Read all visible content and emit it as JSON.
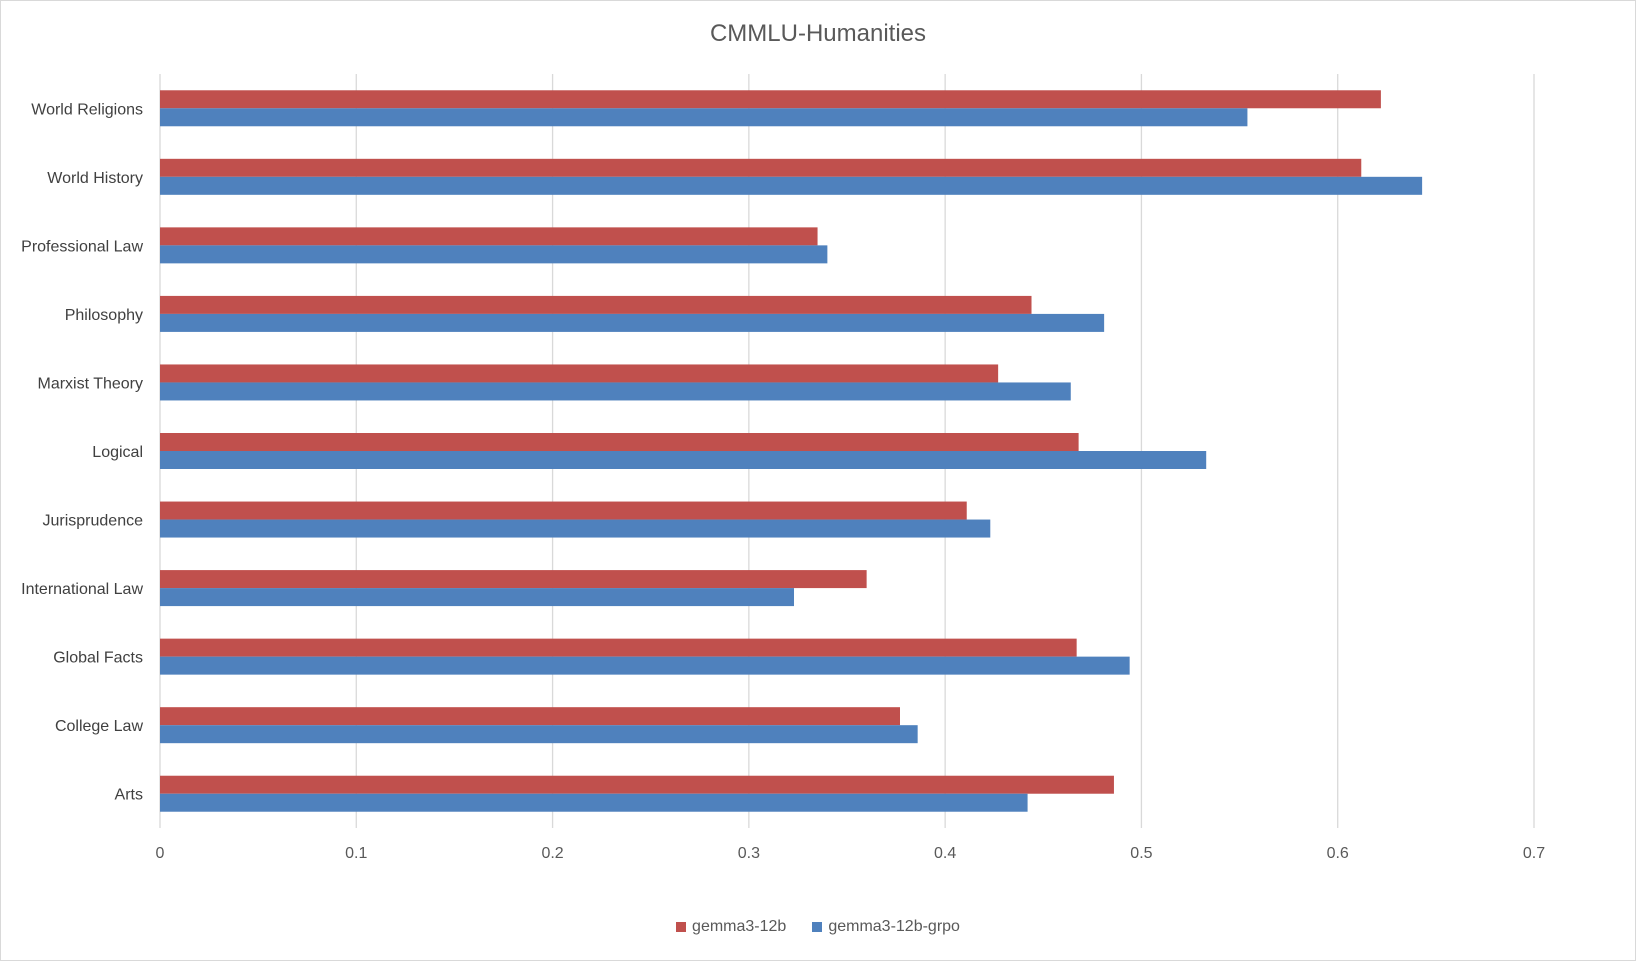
{
  "chart_data": {
    "type": "bar",
    "orientation": "horizontal",
    "title": "CMMLU-Humanities",
    "xlabel": "",
    "ylabel": "",
    "xlim": [
      0,
      0.7
    ],
    "x_ticks": [
      "0",
      "0.1",
      "0.2",
      "0.3",
      "0.4",
      "0.5",
      "0.6",
      "0.7"
    ],
    "grid": true,
    "legend_position": "bottom",
    "categories": [
      "Arts",
      "College Law",
      "Global Facts",
      "International Law",
      "Jurisprudence",
      "Logical",
      "Marxist Theory",
      "Philosophy",
      "Professional Law",
      "World History",
      "World Religions"
    ],
    "series": [
      {
        "name": "gemma3-12b",
        "color": "#c0504d",
        "values": [
          0.486,
          0.377,
          0.467,
          0.36,
          0.411,
          0.468,
          0.427,
          0.444,
          0.335,
          0.612,
          0.622
        ]
      },
      {
        "name": "gemma3-12b-grpo",
        "color": "#4f81bd",
        "values": [
          0.442,
          0.386,
          0.494,
          0.323,
          0.423,
          0.533,
          0.464,
          0.481,
          0.34,
          0.643,
          0.554
        ]
      }
    ]
  }
}
